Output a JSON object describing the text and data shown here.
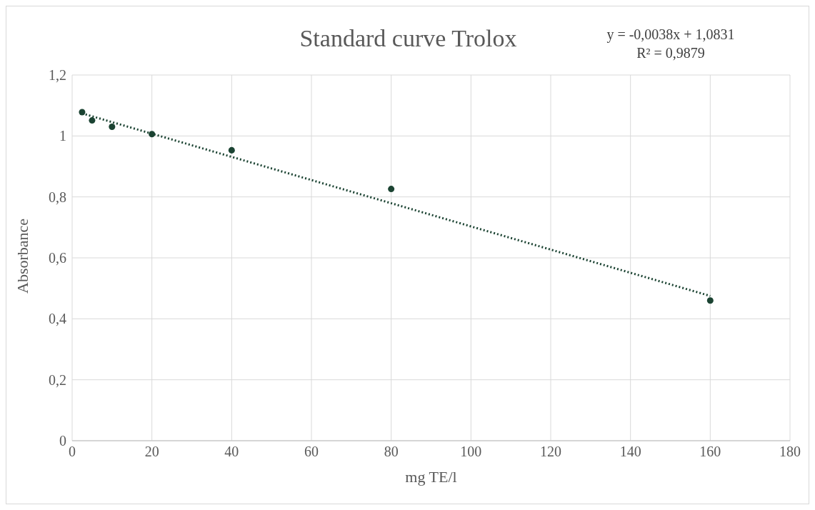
{
  "chart_data": {
    "type": "scatter",
    "title": "Standard curve Trolox",
    "xlabel": "mg TE/l",
    "ylabel": "Absorbance",
    "x": [
      2.5,
      5,
      10,
      20,
      40,
      80,
      160
    ],
    "series": [
      {
        "color": "#1b4332",
        "values": [
          1.078,
          1.051,
          1.03,
          1.006,
          0.953,
          0.826,
          0.46
        ],
        "marker": "circle"
      },
      {
        "type": "line",
        "color": "#1b4332",
        "x": [
          2.5,
          160
        ],
        "values": [
          1.074,
          0.475
        ],
        "line_style": "dotted",
        "marker": "none"
      }
    ],
    "xlim": [
      0,
      180
    ],
    "xticks": [
      0,
      20,
      40,
      60,
      80,
      100,
      120,
      140,
      160,
      180
    ],
    "ylim": [
      0,
      1.2
    ],
    "yticks": [
      {
        "value": 0,
        "label": "0"
      },
      {
        "value": 0.2,
        "label": "0,2"
      },
      {
        "value": 0.4,
        "label": "0,4"
      },
      {
        "value": 0.6,
        "label": "0,6"
      },
      {
        "value": 0.8,
        "label": "0,8"
      },
      {
        "value": 1,
        "label": "1"
      },
      {
        "value": 1.2,
        "label": "1,2"
      }
    ],
    "grid": true,
    "annotations": [
      "y = -0,0038x + 1,0831",
      "R² = 0,9879"
    ]
  }
}
